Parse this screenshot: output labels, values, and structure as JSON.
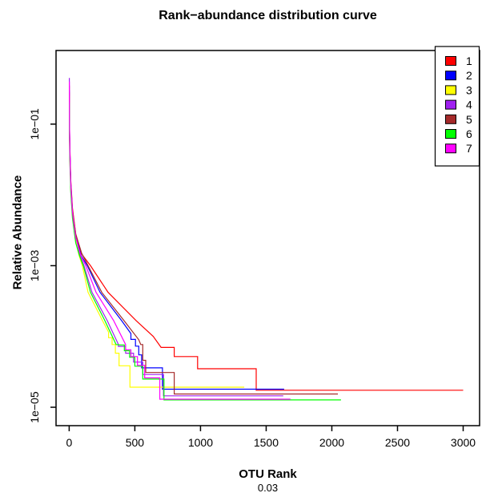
{
  "chart_data": {
    "type": "line",
    "title": "Rank−abundance distribution curve",
    "xlabel": "OTU Rank",
    "xlabel_sub": "0.03",
    "ylabel": "Relative Abundance",
    "y_scale": "log10",
    "grid": false,
    "legend_position": "top-right",
    "axes": {
      "xlim": [
        -100,
        3125
      ],
      "ylim_log10": [
        -5.26,
        0.04
      ],
      "x_ticks": [
        {
          "value": 0,
          "label": "0"
        },
        {
          "value": 500,
          "label": "500"
        },
        {
          "value": 1000,
          "label": "1000"
        },
        {
          "value": 1500,
          "label": "1500"
        },
        {
          "value": 2000,
          "label": "2000"
        },
        {
          "value": 2500,
          "label": "2500"
        },
        {
          "value": 3000,
          "label": "3000"
        }
      ],
      "y_ticks": [
        {
          "log10": -1,
          "label": "1e−01"
        },
        {
          "log10": -3,
          "label": "1e−03"
        },
        {
          "log10": -5,
          "label": "1e−05"
        }
      ]
    },
    "series": [
      {
        "name": "1",
        "color": "#FF0000",
        "points": [
          [
            1,
            0.35
          ],
          [
            2,
            0.12
          ],
          [
            5,
            0.05
          ],
          [
            12,
            0.016
          ],
          [
            25,
            0.0065
          ],
          [
            50,
            0.0028
          ],
          [
            90,
            0.0015
          ],
          [
            162,
            0.001
          ],
          [
            296,
            0.00042
          ],
          [
            510,
            0.000167
          ],
          [
            640,
            0.0001
          ],
          [
            700,
            7e-05
          ],
          [
            800,
            7e-05
          ],
          [
            800,
            5.2e-05
          ],
          [
            978,
            5.2e-05
          ],
          [
            978,
            3.5e-05
          ],
          [
            1424,
            3.5e-05
          ],
          [
            1424,
            1.74e-05
          ],
          [
            3000,
            1.74e-05
          ]
        ]
      },
      {
        "name": "2",
        "color": "#0000FF",
        "points": [
          [
            1,
            0.3
          ],
          [
            2,
            0.11
          ],
          [
            5,
            0.045
          ],
          [
            12,
            0.014
          ],
          [
            25,
            0.0058
          ],
          [
            50,
            0.0026
          ],
          [
            90,
            0.0014
          ],
          [
            138,
            0.001
          ],
          [
            235,
            0.00042
          ],
          [
            400,
            0.000167
          ],
          [
            470,
            0.00011
          ],
          [
            470,
            9.1e-05
          ],
          [
            505,
            9.1e-05
          ],
          [
            505,
            7.3e-05
          ],
          [
            530,
            7.3e-05
          ],
          [
            530,
            5.5e-05
          ],
          [
            552,
            5.5e-05
          ],
          [
            552,
            3.6e-05
          ],
          [
            710,
            3.6e-05
          ],
          [
            710,
            1.8e-05
          ],
          [
            1637,
            1.8e-05
          ]
        ]
      },
      {
        "name": "3",
        "color": "#FFFF00",
        "points": [
          [
            1,
            0.25
          ],
          [
            2,
            0.09
          ],
          [
            5,
            0.035
          ],
          [
            12,
            0.012
          ],
          [
            25,
            0.005
          ],
          [
            50,
            0.0022
          ],
          [
            75,
            0.0014
          ],
          [
            100,
            0.001
          ],
          [
            144,
            0.00042
          ],
          [
            254,
            0.000167
          ],
          [
            300,
            0.000115
          ],
          [
            300,
            9.6e-05
          ],
          [
            327,
            9.6e-05
          ],
          [
            327,
            7.7e-05
          ],
          [
            352,
            7.7e-05
          ],
          [
            352,
            5.8e-05
          ],
          [
            380,
            5.8e-05
          ],
          [
            380,
            3.85e-05
          ],
          [
            463,
            3.85e-05
          ],
          [
            463,
            1.92e-05
          ],
          [
            1333,
            1.92e-05
          ]
        ]
      },
      {
        "name": "4",
        "color": "#A020F0",
        "points": [
          [
            1,
            0.45
          ],
          [
            2,
            0.13
          ],
          [
            5,
            0.045
          ],
          [
            12,
            0.015
          ],
          [
            25,
            0.006
          ],
          [
            50,
            0.0026
          ],
          [
            82,
            0.0014
          ],
          [
            113,
            0.001
          ],
          [
            174,
            0.00042
          ],
          [
            290,
            0.000167
          ],
          [
            375,
            7.7e-05
          ],
          [
            375,
            7.25e-05
          ],
          [
            430,
            7.25e-05
          ],
          [
            430,
            5.8e-05
          ],
          [
            490,
            5.8e-05
          ],
          [
            490,
            4.35e-05
          ],
          [
            560,
            4.35e-05
          ],
          [
            560,
            2.9e-05
          ],
          [
            718,
            2.9e-05
          ],
          [
            718,
            1.45e-05
          ],
          [
            1630,
            1.45e-05
          ]
        ]
      },
      {
        "name": "5",
        "color": "#A52A2A",
        "points": [
          [
            1,
            0.28
          ],
          [
            2,
            0.1
          ],
          [
            5,
            0.04
          ],
          [
            12,
            0.014
          ],
          [
            25,
            0.006
          ],
          [
            50,
            0.0028
          ],
          [
            95,
            0.0015
          ],
          [
            144,
            0.001
          ],
          [
            248,
            0.00042
          ],
          [
            418,
            0.000167
          ],
          [
            530,
            9e-05
          ],
          [
            545,
            7.7e-05
          ],
          [
            560,
            7.7e-05
          ],
          [
            560,
            4.6e-05
          ],
          [
            583,
            4.6e-05
          ],
          [
            583,
            3.1e-05
          ],
          [
            800,
            3.1e-05
          ],
          [
            800,
            1.54e-05
          ],
          [
            2046,
            1.54e-05
          ]
        ]
      },
      {
        "name": "6",
        "color": "#00FF00",
        "points": [
          [
            1,
            0.2
          ],
          [
            2,
            0.08
          ],
          [
            5,
            0.032
          ],
          [
            12,
            0.011
          ],
          [
            25,
            0.0047
          ],
          [
            50,
            0.0021
          ],
          [
            78,
            0.0014
          ],
          [
            107,
            0.001
          ],
          [
            162,
            0.00042
          ],
          [
            272,
            0.000167
          ],
          [
            357,
            7.7e-05
          ],
          [
            390,
            7.6e-05
          ],
          [
            420,
            7.6e-05
          ],
          [
            420,
            6.3e-05
          ],
          [
            460,
            6.3e-05
          ],
          [
            460,
            5.1e-05
          ],
          [
            500,
            5.1e-05
          ],
          [
            500,
            3.8e-05
          ],
          [
            560,
            3.8e-05
          ],
          [
            560,
            2.5e-05
          ],
          [
            722,
            2.5e-05
          ],
          [
            722,
            1.27e-05
          ],
          [
            2070,
            1.27e-05
          ]
        ]
      },
      {
        "name": "7",
        "color": "#FF00FF",
        "points": [
          [
            1,
            0.4
          ],
          [
            2,
            0.12
          ],
          [
            5,
            0.042
          ],
          [
            12,
            0.014
          ],
          [
            25,
            0.0056
          ],
          [
            50,
            0.0025
          ],
          [
            88,
            0.0014
          ],
          [
            126,
            0.001
          ],
          [
            205,
            0.00042
          ],
          [
            339,
            0.000167
          ],
          [
            430,
            7.7e-05
          ],
          [
            430,
            6.5e-05
          ],
          [
            470,
            6.5e-05
          ],
          [
            470,
            5.2e-05
          ],
          [
            520,
            5.2e-05
          ],
          [
            520,
            3.9e-05
          ],
          [
            575,
            3.9e-05
          ],
          [
            575,
            2.6e-05
          ],
          [
            690,
            2.6e-05
          ],
          [
            690,
            1.3e-05
          ],
          [
            1685,
            1.3e-05
          ]
        ]
      }
    ]
  }
}
